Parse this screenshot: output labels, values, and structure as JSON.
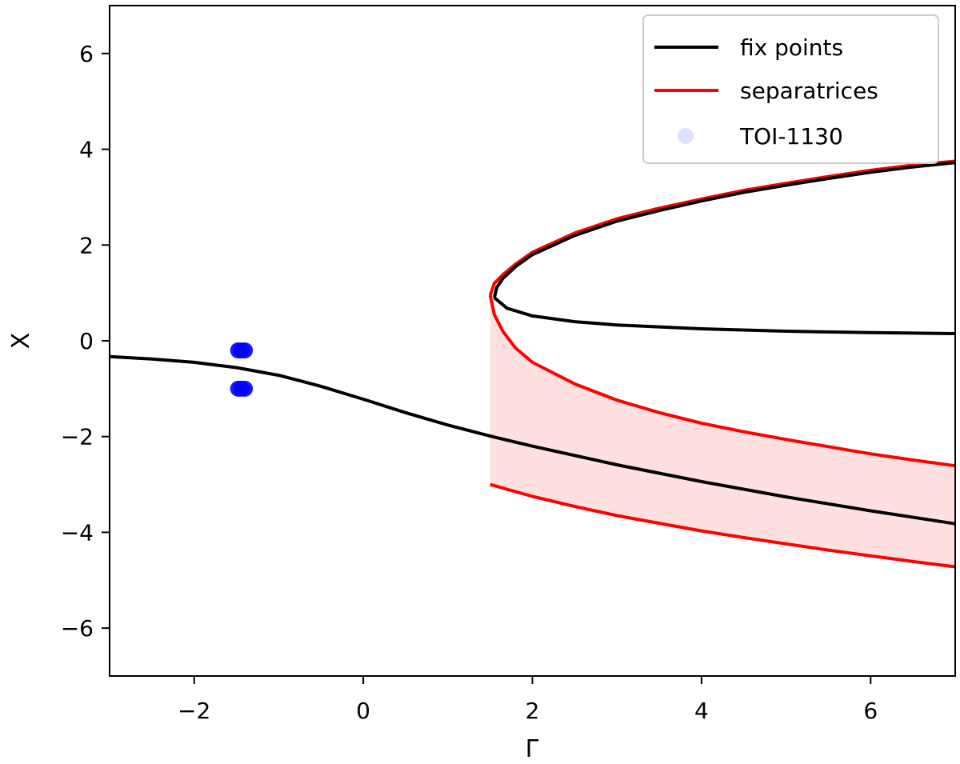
{
  "chart_data": {
    "type": "line",
    "title": "",
    "xlabel": "Γ",
    "ylabel": "X",
    "xlim": [
      -3,
      7
    ],
    "ylim": [
      -7,
      7
    ],
    "grid": false,
    "legend_position": "top-right",
    "x_ticks": [
      {
        "value": -2,
        "label": "−2"
      },
      {
        "value": 0,
        "label": "0"
      },
      {
        "value": 2,
        "label": "2"
      },
      {
        "value": 4,
        "label": "4"
      },
      {
        "value": 6,
        "label": "6"
      }
    ],
    "y_ticks": [
      {
        "value": 6,
        "label": "6"
      },
      {
        "value": 4,
        "label": "4"
      },
      {
        "value": 2,
        "label": "2"
      },
      {
        "value": 0,
        "label": "0"
      },
      {
        "value": -2,
        "label": "−2"
      },
      {
        "value": -4,
        "label": "−4"
      },
      {
        "value": -6,
        "label": "−6"
      }
    ],
    "legend": [
      {
        "label": "fix points",
        "kind": "line",
        "color": "#000000"
      },
      {
        "label": "separatrices",
        "kind": "line",
        "color": "#ff0000"
      },
      {
        "label": "TOI-1130",
        "kind": "marker",
        "color": "#0000ff"
      }
    ],
    "colors": {
      "fix_points": "#000000",
      "separatrices": "#ff0000",
      "shade": "#ffe0e0",
      "toi": "#0000ff"
    },
    "series": [
      {
        "name": "fix points",
        "role": "fix-lower",
        "color": "#000000",
        "x": [
          -3,
          -2.5,
          -2,
          -1.5,
          -1,
          -0.5,
          0,
          0.5,
          1,
          1.5,
          2,
          3,
          4,
          5,
          6,
          7
        ],
        "y": [
          -0.33,
          -0.38,
          -0.45,
          -0.56,
          -0.72,
          -0.95,
          -1.22,
          -1.5,
          -1.76,
          -1.99,
          -2.2,
          -2.59,
          -2.94,
          -3.26,
          -3.55,
          -3.82
        ]
      },
      {
        "name": "fix points",
        "role": "fix-upper",
        "color": "#000000",
        "x": [
          1.55,
          1.58,
          1.65,
          1.8,
          2,
          2.5,
          3,
          3.5,
          4,
          4.5,
          5,
          5.5,
          6,
          6.5,
          7
        ],
        "y": [
          0.9,
          1.12,
          1.3,
          1.55,
          1.8,
          2.2,
          2.5,
          2.72,
          2.92,
          3.1,
          3.25,
          3.39,
          3.52,
          3.63,
          3.72
        ]
      },
      {
        "name": "fix points",
        "role": "fix-middle",
        "color": "#000000",
        "x": [
          1.55,
          1.7,
          2,
          2.5,
          3,
          4,
          5,
          6,
          7
        ],
        "y": [
          0.9,
          0.68,
          0.52,
          0.4,
          0.33,
          0.25,
          0.2,
          0.17,
          0.15
        ]
      },
      {
        "name": "separatrices",
        "role": "sep-upper",
        "color": "#ff0000",
        "x": [
          1.5,
          1.55,
          1.65,
          1.8,
          2,
          2.5,
          3,
          3.5,
          4,
          4.5,
          5,
          5.5,
          6,
          6.5,
          7
        ],
        "y": [
          0.95,
          1.2,
          1.38,
          1.6,
          1.85,
          2.25,
          2.55,
          2.77,
          2.96,
          3.14,
          3.29,
          3.43,
          3.56,
          3.67,
          3.75
        ]
      },
      {
        "name": "separatrices",
        "role": "sep-middle",
        "color": "#ff0000",
        "x": [
          1.5,
          1.55,
          1.65,
          1.8,
          2,
          2.5,
          3,
          3.5,
          4,
          4.5,
          5,
          5.5,
          6,
          6.5,
          7
        ],
        "y": [
          0.95,
          0.55,
          0.2,
          -0.15,
          -0.45,
          -0.9,
          -1.24,
          -1.5,
          -1.72,
          -1.9,
          -2.06,
          -2.21,
          -2.36,
          -2.49,
          -2.61
        ]
      },
      {
        "name": "separatrices",
        "role": "sep-lower",
        "color": "#ff0000",
        "x": [
          1.5,
          2,
          2.5,
          3,
          3.5,
          4,
          4.5,
          5,
          5.5,
          6,
          6.5,
          7
        ],
        "y": [
          -3.0,
          -3.25,
          -3.46,
          -3.65,
          -3.81,
          -3.97,
          -4.11,
          -4.24,
          -4.37,
          -4.49,
          -4.61,
          -4.72
        ]
      }
    ],
    "points": {
      "name": "TOI-1130",
      "color": "#0000ff",
      "x": [
        -1.48,
        -1.44,
        -1.4,
        -1.48,
        -1.44,
        -1.4
      ],
      "y": [
        -0.2,
        -0.2,
        -0.2,
        -1.0,
        -1.0,
        -1.0
      ]
    }
  }
}
